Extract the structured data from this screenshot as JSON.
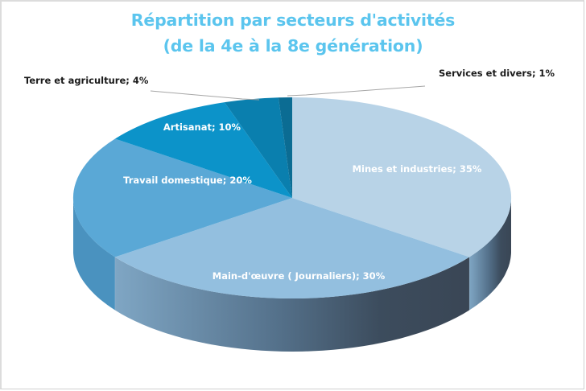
{
  "chart_data": {
    "type": "pie",
    "variant": "3d",
    "title": "Répartition par secteurs d'activités",
    "subtitle": "(de la 4e à la 8e génération)",
    "categories": [
      "Mines et industries",
      "Main-d'œuvre (Journaliers)",
      "Travail domestique",
      "Artisanat",
      "Terre et agriculture",
      "Services et divers"
    ],
    "values": [
      35,
      30,
      20,
      10,
      4,
      1
    ],
    "unit": "%",
    "labels": [
      "Mines et industries; 35%",
      "Main-d'œuvre ( Journaliers); 30%",
      "Travail domestique; 20%",
      "Artisanat; 10%",
      "Terre et agriculture; 4%",
      "Services et divers; 1%"
    ],
    "colors": [
      "#b8d3e7",
      "#93bfdf",
      "#5aa8d6",
      "#0c93c9",
      "#0a7fae",
      "#0b6c93"
    ],
    "side_colors": [
      "#3c4a59",
      "#3f5a72",
      "#4a92bf",
      "#0a7fae",
      "#096f98",
      "#085a7a"
    ],
    "legend": "none",
    "start_angle_deg": 0,
    "direction": "clockwise"
  },
  "title": {
    "line1": "Répartition par secteurs d'activités",
    "line2": "(de la 4e à la 8e génération)"
  }
}
